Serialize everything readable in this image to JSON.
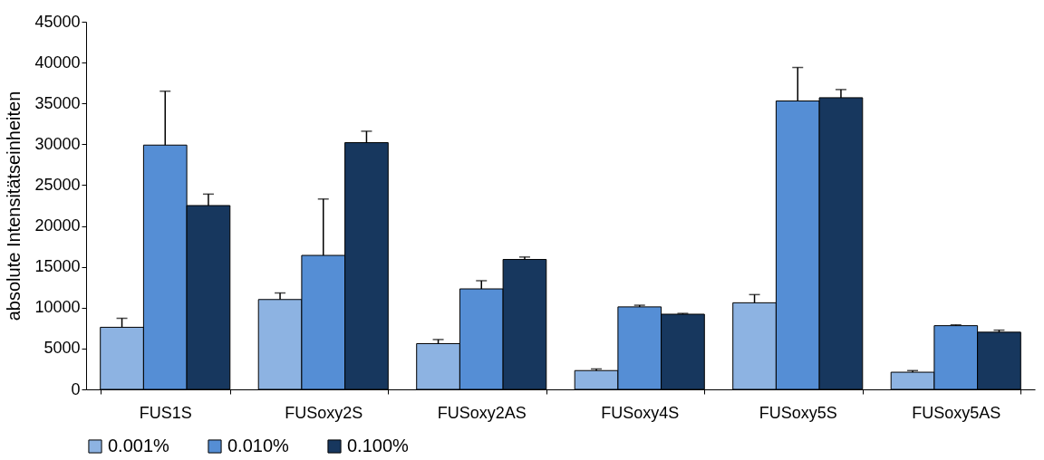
{
  "chart_data": {
    "type": "bar",
    "ylabel": "absolute Intensitätseinheiten",
    "categories": [
      "FUS1S",
      "FUSoxy2S",
      "FUSoxy2AS",
      "FUSoxy4S",
      "FUSoxy5S",
      "FUSoxy5AS"
    ],
    "series": [
      {
        "name": "0.001%",
        "color": "#8db3e2",
        "values": [
          7600,
          11000,
          5600,
          2300,
          10600,
          2100
        ],
        "errors": [
          [
            7600,
            8700
          ],
          [
            11000,
            11800
          ],
          [
            5600,
            6100
          ],
          [
            2300,
            2500
          ],
          [
            10600,
            11600
          ],
          [
            2100,
            2300
          ]
        ]
      },
      {
        "name": "0.010%",
        "color": "#558ed5",
        "values": [
          29900,
          16400,
          12300,
          10100,
          35300,
          7800
        ],
        "errors": [
          [
            29900,
            36500
          ],
          [
            16400,
            23300
          ],
          [
            12300,
            13300
          ],
          [
            10100,
            10300
          ],
          [
            35300,
            39400
          ],
          [
            7800,
            7900
          ]
        ]
      },
      {
        "name": "0.100%",
        "color": "#17375e",
        "values": [
          22500,
          30200,
          15900,
          9200,
          35700,
          7000
        ],
        "errors": [
          [
            22500,
            23900
          ],
          [
            30200,
            31600
          ],
          [
            15900,
            16200
          ],
          [
            9200,
            9300
          ],
          [
            35700,
            36700
          ],
          [
            7000,
            7250
          ]
        ]
      }
    ],
    "ylim": [
      0,
      45000
    ],
    "yticks": [
      0,
      5000,
      10000,
      15000,
      20000,
      25000,
      30000,
      35000,
      40000,
      45000
    ],
    "grid": false,
    "legend": "bottom"
  }
}
